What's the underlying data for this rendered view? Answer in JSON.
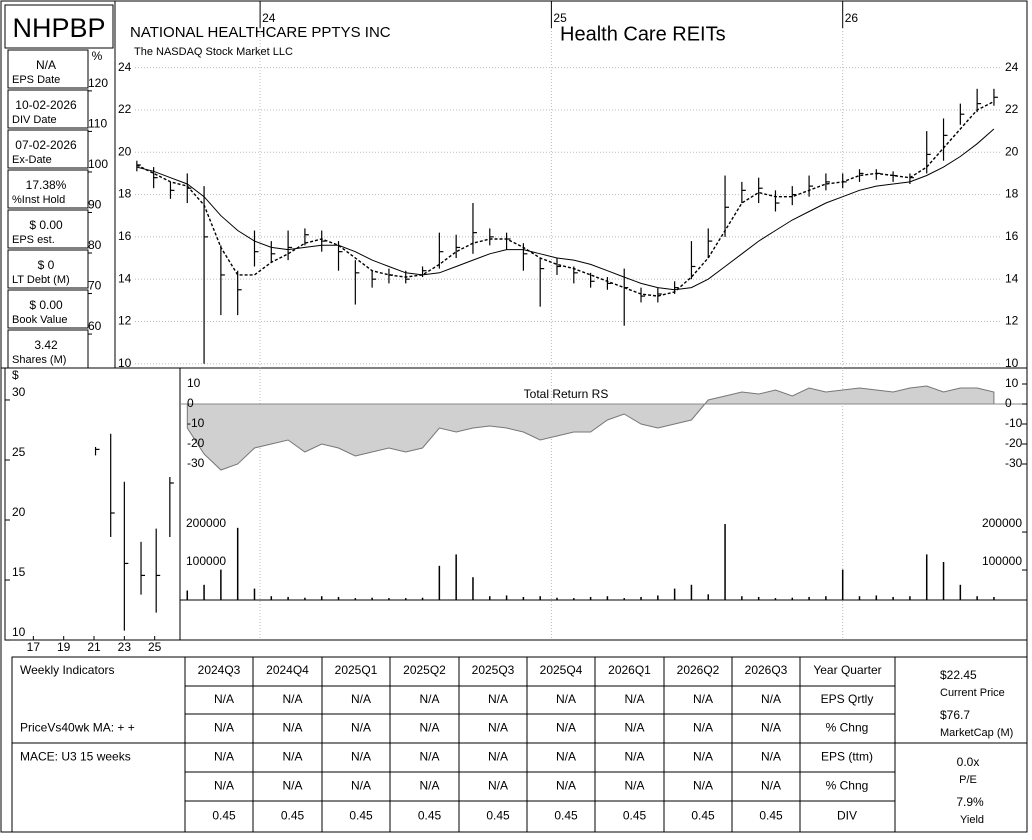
{
  "chart_data": [
    {
      "type": "ohlc",
      "title": "NATIONAL HEALTHCARE PPTYS INC",
      "subtitle": "The NASDAQ Stock Market LLC",
      "annotation": "Health Care REITs",
      "grid": true,
      "x": [
        0,
        3,
        6,
        9,
        12,
        15,
        18,
        21,
        24,
        27,
        30,
        33,
        36,
        39,
        42,
        45,
        48,
        51,
        54,
        57,
        60,
        63,
        66,
        69,
        72,
        75,
        78,
        81,
        84,
        87,
        90,
        93,
        96,
        99,
        102,
        105,
        108,
        111,
        114,
        117,
        120,
        123,
        126,
        129,
        132,
        135,
        138,
        141,
        144,
        147,
        150,
        153
      ],
      "xlim": [
        -3.9,
        158.9
      ],
      "xticks": [
        {
          "value": 22,
          "label": "24"
        },
        {
          "value": 74,
          "label": "25"
        },
        {
          "value": 126,
          "label": "26"
        }
      ],
      "high": [
        19.6,
        19.3,
        18.6,
        19.0,
        18.4,
        15.6,
        14.4,
        16.3,
        15.8,
        16.3,
        16.4,
        16.3,
        15.8,
        14.9,
        14.4,
        14.5,
        14.4,
        14.6,
        16.2,
        16.1,
        17.6,
        16.4,
        16.2,
        15.7,
        15.0,
        15.0,
        14.6,
        14.3,
        14.1,
        14.5,
        13.6,
        13.6,
        13.9,
        15.8,
        16.4,
        18.9,
        18.6,
        18.8,
        18.2,
        18.4,
        18.9,
        19.0,
        19.0,
        19.2,
        19.2,
        19.1,
        19.0,
        21.0,
        21.6,
        22.3,
        23.0,
        23.0
      ],
      "low": [
        19.1,
        18.3,
        17.8,
        17.6,
        10.0,
        12.3,
        12.3,
        14.6,
        14.8,
        14.9,
        15.6,
        15.3,
        14.4,
        12.8,
        13.6,
        13.8,
        13.8,
        14.1,
        14.5,
        15.0,
        15.2,
        15.6,
        15.4,
        14.4,
        12.7,
        14.2,
        13.8,
        13.6,
        13.5,
        11.8,
        12.9,
        12.9,
        13.3,
        14.0,
        15.0,
        16.0,
        17.6,
        17.6,
        17.2,
        17.5,
        17.9,
        18.2,
        18.3,
        18.6,
        18.7,
        18.6,
        18.5,
        19.0,
        19.6,
        21.3,
        21.9,
        22.2
      ],
      "close": [
        19.4,
        18.8,
        18.2,
        18.3,
        16.0,
        14.2,
        13.5,
        15.3,
        15.2,
        15.5,
        16.1,
        15.8,
        15.3,
        14.3,
        14.0,
        14.2,
        14.0,
        14.4,
        15.3,
        15.5,
        16.2,
        16.0,
        15.9,
        15.2,
        14.5,
        14.6,
        14.3,
        13.9,
        13.8,
        13.6,
        13.2,
        13.3,
        13.6,
        14.6,
        15.8,
        17.4,
        18.2,
        18.3,
        17.6,
        18.0,
        18.4,
        18.6,
        18.6,
        19.0,
        19.0,
        18.9,
        18.8,
        19.9,
        20.8,
        21.8,
        22.3,
        22.6
      ],
      "moving_averages": [
        {
          "dashed": true,
          "values": [
            19.4,
            19.0,
            18.6,
            18.4,
            17.5,
            15.5,
            14.2,
            14.2,
            14.8,
            15.2,
            15.7,
            15.9,
            15.6,
            15.0,
            14.4,
            14.2,
            14.1,
            14.2,
            14.7,
            15.3,
            15.7,
            15.9,
            15.9,
            15.5,
            15.0,
            14.7,
            14.5,
            14.2,
            13.9,
            13.6,
            13.3,
            13.2,
            13.4,
            14.1,
            15.0,
            16.3,
            17.6,
            18.1,
            17.9,
            17.9,
            18.2,
            18.5,
            18.6,
            18.9,
            19.0,
            18.9,
            18.8,
            19.3,
            20.2,
            21.1,
            22.0,
            22.4
          ]
        },
        {
          "dashed": false,
          "values": [
            19.3,
            19.1,
            18.8,
            18.5,
            17.9,
            17.0,
            16.3,
            15.8,
            15.5,
            15.4,
            15.5,
            15.6,
            15.6,
            15.3,
            14.9,
            14.6,
            14.3,
            14.2,
            14.3,
            14.6,
            14.9,
            15.2,
            15.4,
            15.4,
            15.2,
            15.0,
            14.9,
            14.7,
            14.4,
            14.1,
            13.8,
            13.6,
            13.5,
            13.6,
            14.0,
            14.6,
            15.2,
            15.8,
            16.3,
            16.8,
            17.2,
            17.6,
            17.9,
            18.2,
            18.4,
            18.5,
            18.6,
            18.9,
            19.3,
            19.8,
            20.4,
            21.1
          ]
        }
      ],
      "ylim": [
        9.8,
        27.2
      ],
      "yticks": [
        10,
        12,
        14,
        16,
        18,
        20,
        22,
        24
      ],
      "y2label": "%",
      "y2lim": [
        49.9,
        140.7
      ],
      "y2ticks": [
        60,
        70,
        80,
        90,
        100,
        110,
        120
      ]
    },
    {
      "type": "area",
      "title": "Total Return RS",
      "values": [
        null,
        null,
        null,
        -12,
        -25,
        -33,
        -30,
        -22,
        -20,
        -18,
        -24,
        -20,
        -22,
        -26,
        -24,
        -22,
        -24,
        -22,
        -12,
        -14,
        -12,
        -11,
        -12,
        -14,
        -18,
        -16,
        -14,
        -14,
        -8,
        -5,
        -10,
        -12,
        -10,
        -8,
        2,
        4,
        6,
        5,
        7,
        4,
        8,
        6,
        7,
        8,
        7,
        6,
        8,
        9,
        6,
        8,
        8,
        6
      ],
      "ylim": [
        -37,
        17
      ],
      "yticks": [
        10,
        0,
        -10,
        -20,
        -30
      ]
    },
    {
      "type": "bar",
      "values": [
        null,
        null,
        null,
        25000,
        40000,
        80000,
        190000,
        30000,
        10000,
        8000,
        6000,
        10000,
        8000,
        5000,
        6000,
        5000,
        5000,
        6000,
        90000,
        120000,
        60000,
        10000,
        12000,
        8000,
        10000,
        6000,
        5000,
        8000,
        10000,
        5000,
        8000,
        12000,
        30000,
        40000,
        15000,
        200000,
        10000,
        8000,
        5000,
        6000,
        8000,
        10000,
        80000,
        10000,
        12000,
        8000,
        10000,
        120000,
        100000,
        40000,
        10000,
        8000
      ],
      "ylim": [
        0,
        316000
      ],
      "yticks": [
        200000,
        100000
      ]
    },
    {
      "type": "ohlc",
      "ylabel": "$",
      "x": [
        21.1,
        22.1,
        23.0,
        24.1,
        25.1,
        26.0
      ],
      "high": [
        25.5,
        26.6,
        22.6,
        17.6,
        18.7,
        23.0
      ],
      "low": [
        24.8,
        18.0,
        10.2,
        13.2,
        11.7,
        18.0
      ],
      "close": [
        25.3,
        20.0,
        15.8,
        14.8,
        14.8,
        22.5
      ],
      "xlim": [
        15.13,
        26.67
      ],
      "xticks": [
        17,
        19,
        21,
        23,
        25
      ],
      "ylim": [
        9.42,
        32.08
      ],
      "yticks": [
        10,
        15,
        20,
        25,
        30
      ]
    }
  ],
  "sidebar": {
    "ticker": "NHPBP",
    "stats": [
      {
        "value": "N/A",
        "label": "EPS Date"
      },
      {
        "value": "10-02-2026",
        "label": "DIV Date"
      },
      {
        "value": "07-02-2026",
        "label": "Ex-Date"
      },
      {
        "value": "17.38%",
        "label": "%Inst Hold"
      },
      {
        "value": "$ 0.00",
        "label": "EPS est."
      },
      {
        "value": "$ 0",
        "label": "LT Debt (M)"
      },
      {
        "value": "$ 0.00",
        "label": "Book Value"
      },
      {
        "value": "3.42",
        "label": "Shares (M)"
      }
    ]
  },
  "table": {
    "header": [
      "Weekly Indicators",
      "2024Q3",
      "2024Q4",
      "2025Q1",
      "2025Q2",
      "2025Q3",
      "2025Q4",
      "2026Q1",
      "2026Q2",
      "2026Q3",
      "Year Quarter"
    ],
    "rows": [
      {
        "values": [
          "N/A",
          "N/A",
          "N/A",
          "N/A",
          "N/A",
          "N/A",
          "N/A",
          "N/A",
          "N/A"
        ],
        "metric": "EPS Qrtly"
      },
      {
        "label": "PriceVs40wk MA:  + +",
        "values": [
          "N/A",
          "N/A",
          "N/A",
          "N/A",
          "N/A",
          "N/A",
          "N/A",
          "N/A",
          "N/A"
        ],
        "metric": "% Chng"
      },
      {
        "label": "MACE: U3  15 weeks",
        "values": [
          "N/A",
          "N/A",
          "N/A",
          "N/A",
          "N/A",
          "N/A",
          "N/A",
          "N/A",
          "N/A"
        ],
        "metric": "EPS (ttm)"
      },
      {
        "values": [
          "N/A",
          "N/A",
          "N/A",
          "N/A",
          "N/A",
          "N/A",
          "N/A",
          "N/A",
          "N/A"
        ],
        "metric": "% Chng"
      },
      {
        "values": [
          0.45,
          0.45,
          0.45,
          0.45,
          0.45,
          0.45,
          0.45,
          0.45,
          0.45
        ],
        "metric": "DIV"
      }
    ]
  },
  "summary": [
    {
      "value": "$22.45",
      "label": "Current Price"
    },
    {
      "value": "$76.7",
      "label": "MarketCap (M)"
    },
    {
      "value": "0.0x",
      "label": "P/E"
    },
    {
      "value": "7.9%",
      "label": "Yield"
    }
  ]
}
